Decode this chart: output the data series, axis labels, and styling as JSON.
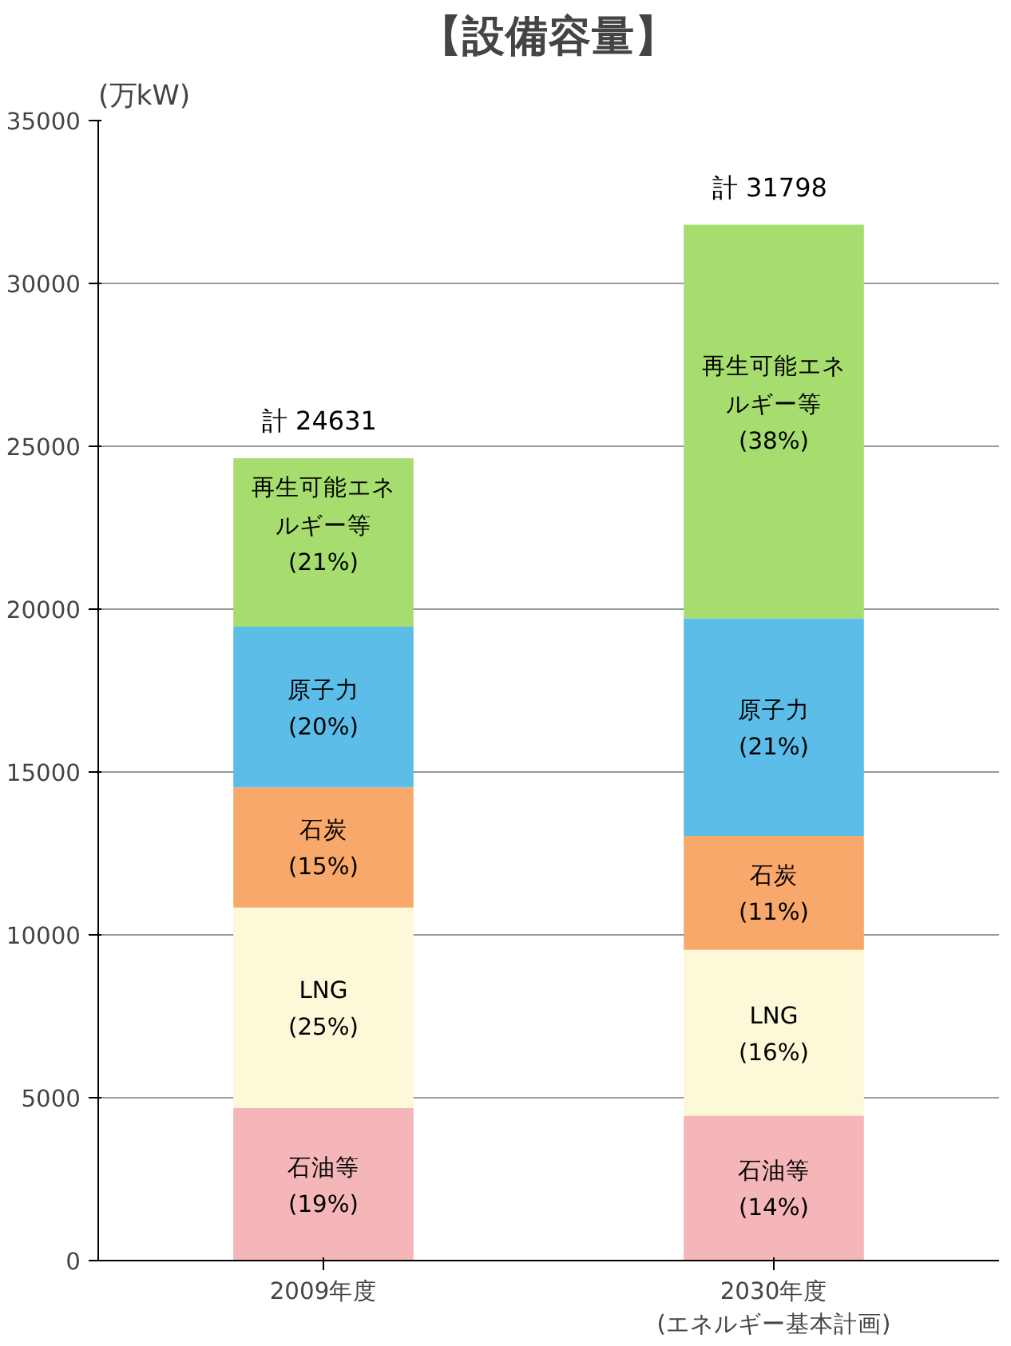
{
  "chart_data": {
    "type": "bar",
    "title": "【設備容量】",
    "ylabel": "(万kW)",
    "stacked": true,
    "categories": [
      "2009年度",
      "2030年度\n(エネルギー基本計画)"
    ],
    "ylim": [
      0,
      35000
    ],
    "yticks": [
      0,
      5000,
      10000,
      15000,
      20000,
      25000,
      30000,
      35000
    ],
    "grid": "y",
    "series": [
      {
        "name": "石油等",
        "color": "#f4b6b8",
        "values": [
          4680,
          4450
        ]
      },
      {
        "name": "LNG",
        "color": "#fcf8d8",
        "values": [
          6160,
          5090
        ]
      },
      {
        "name": "石炭",
        "color": "#f8a86a",
        "values": [
          3690,
          3500
        ]
      },
      {
        "name": "原子力",
        "color": "#5bbde8",
        "values": [
          4930,
          6680
        ]
      },
      {
        "name": "再生可能エネルギー等",
        "color": "#a6dd6e",
        "values": [
          5170,
          12080
        ]
      }
    ],
    "annotations": [
      "(19%)",
      "(25%)",
      "(15%)",
      "(20%)",
      "(21%)",
      "(14%)",
      "(16%)",
      "(11%)",
      "(21%)",
      "(38%)"
    ],
    "totals": [
      "計  24631",
      "計  31798"
    ]
  }
}
